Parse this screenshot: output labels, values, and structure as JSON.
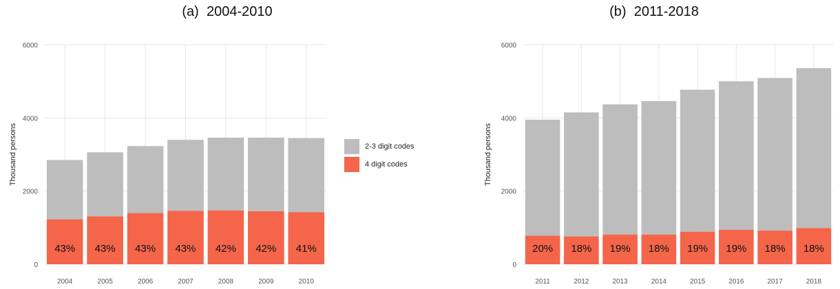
{
  "colors": {
    "gray": "#bdbdbd",
    "red": "#f4654a",
    "grid": "#e6e6e6",
    "axis_text": "#555555"
  },
  "legend": {
    "items": [
      {
        "label": "2-3 digit codes",
        "color": "#bdbdbd"
      },
      {
        "label": "4 digit codes",
        "color": "#f4654a"
      }
    ]
  },
  "chart_data": [
    {
      "type": "bar",
      "stacked": true,
      "title": "(a)  2004-2010",
      "ylabel": "Thousand persons",
      "xlabel": "",
      "ylim": [
        0,
        6000
      ],
      "yticks": [
        0,
        2000,
        4000,
        6000
      ],
      "grid": true,
      "categories": [
        "2004",
        "2005",
        "2006",
        "2007",
        "2008",
        "2009",
        "2010"
      ],
      "series": [
        {
          "name": "4 digit codes",
          "color": "#f4654a",
          "values": [
            1230,
            1310,
            1400,
            1460,
            1470,
            1450,
            1420
          ]
        },
        {
          "name": "2-3 digit codes",
          "color": "#bdbdbd",
          "values": [
            1620,
            1750,
            1830,
            1940,
            1990,
            2010,
            2030
          ]
        }
      ],
      "data_labels": [
        "43%",
        "43%",
        "43%",
        "43%",
        "42%",
        "42%",
        "41%"
      ]
    },
    {
      "type": "bar",
      "stacked": true,
      "title": "(b)  2011-2018",
      "ylabel": "Thousand persons",
      "xlabel": "",
      "ylim": [
        0,
        6000
      ],
      "yticks": [
        0,
        2000,
        4000,
        6000
      ],
      "grid": true,
      "categories": [
        "2011",
        "2012",
        "2013",
        "2014",
        "2015",
        "2016",
        "2017",
        "2018"
      ],
      "series": [
        {
          "name": "4 digit codes",
          "color": "#f4654a",
          "values": [
            780,
            760,
            810,
            810,
            890,
            940,
            920,
            990
          ]
        },
        {
          "name": "2-3 digit codes",
          "color": "#bdbdbd",
          "values": [
            3170,
            3390,
            3560,
            3650,
            3880,
            4060,
            4170,
            4370
          ]
        }
      ],
      "data_labels": [
        "20%",
        "18%",
        "19%",
        "18%",
        "19%",
        "19%",
        "18%",
        "18%"
      ]
    }
  ]
}
